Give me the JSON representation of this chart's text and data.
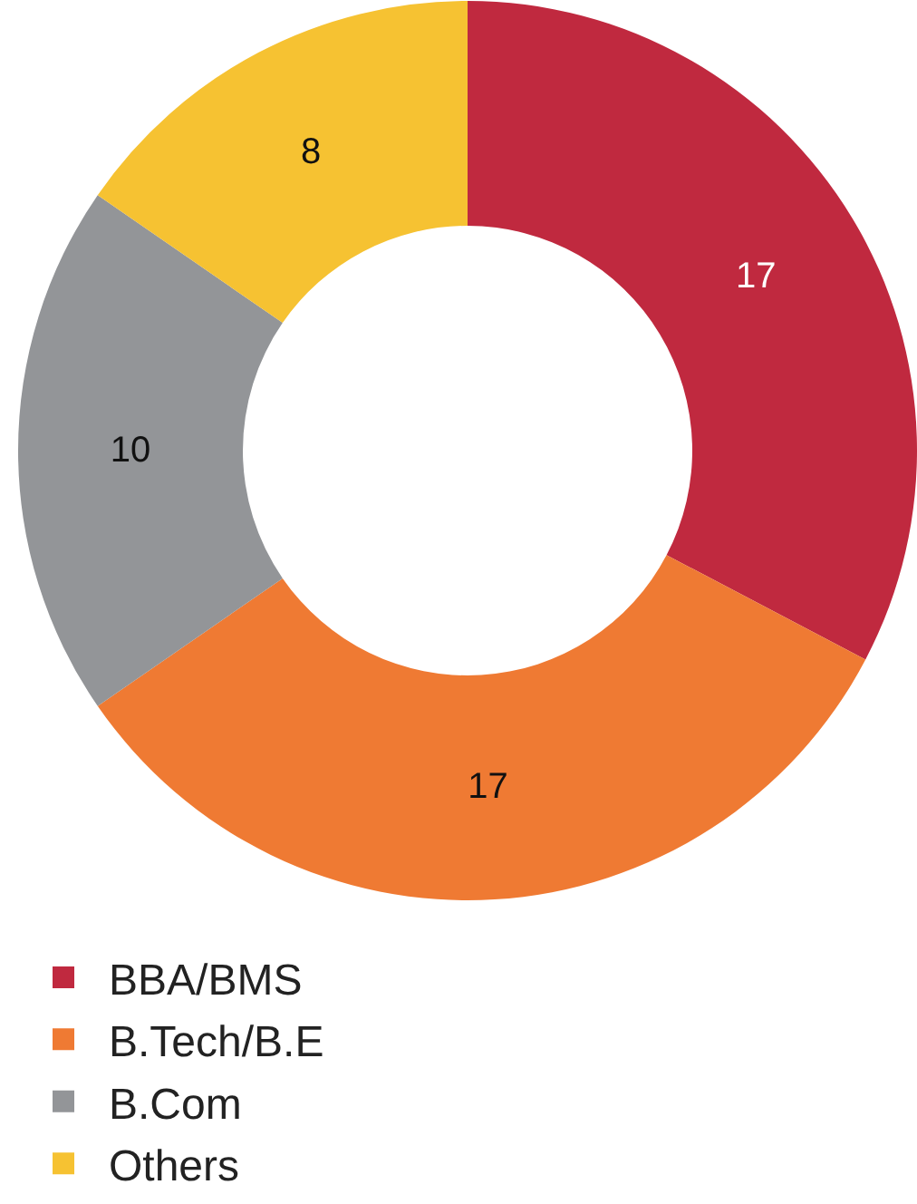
{
  "chart_data": {
    "type": "donut",
    "categories": [
      "BBA/BMS",
      "B.Tech/B.E",
      "B.Com",
      "Others"
    ],
    "values": [
      17,
      17,
      10,
      8
    ],
    "colors": [
      "#c0293f",
      "#ef7a33",
      "#939598",
      "#f6c232"
    ],
    "data_labels": true,
    "legend": "bottom"
  }
}
